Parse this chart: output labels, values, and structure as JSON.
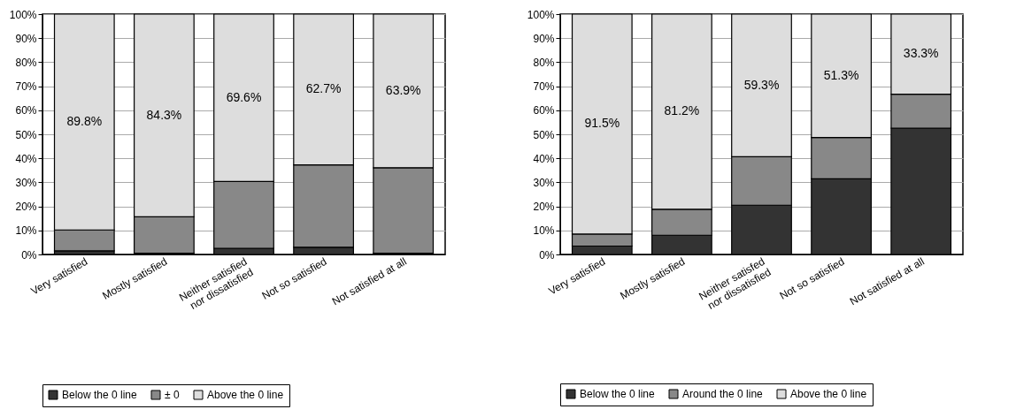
{
  "chart_data": [
    {
      "type": "bar",
      "stacked": true,
      "categories": [
        "Very satisfied",
        "Mostly satisfied",
        "Neither satisfied\nnor dissatisfied",
        "Not so satisfied",
        "Not satisfied at all"
      ],
      "series": [
        {
          "name": "Below the 0 line",
          "color": "#333333",
          "values": [
            1.5,
            0.5,
            2.5,
            3,
            0.5
          ]
        },
        {
          "name": "± 0",
          "color": "#888888",
          "values": [
            8.7,
            15.2,
            27.9,
            34.3,
            35.6
          ]
        },
        {
          "name": "Above the 0 line",
          "color": "#dddddd",
          "values": [
            89.8,
            84.3,
            69.6,
            62.7,
            63.9
          ],
          "value_labels": [
            "89.8%",
            "84.3%",
            "69.6%",
            "62.7%",
            "63.9%"
          ]
        }
      ],
      "ylim": [
        0,
        100
      ],
      "yticks": [
        {
          "value": 0,
          "label": "0%"
        },
        {
          "value": 10,
          "label": "10%"
        },
        {
          "value": 20,
          "label": "20%"
        },
        {
          "value": 30,
          "label": "30%"
        },
        {
          "value": 40,
          "label": "40%"
        },
        {
          "value": 50,
          "label": "50%"
        },
        {
          "value": 60,
          "label": "60%"
        },
        {
          "value": 70,
          "label": "70%"
        },
        {
          "value": 80,
          "label": "80%"
        },
        {
          "value": 90,
          "label": "90%"
        },
        {
          "value": 100,
          "label": "100%"
        }
      ],
      "grid": "y",
      "legend": "bottom"
    },
    {
      "type": "bar",
      "stacked": true,
      "categories": [
        "Very satisfied",
        "Mostly satisfied",
        "Neither satisfed\nnor dissatisfied",
        "Not so satisfied",
        "Not satisfied at all"
      ],
      "series": [
        {
          "name": "Below the 0 line",
          "color": "#333333",
          "values": [
            3.5,
            8,
            20.5,
            31.5,
            52.5
          ]
        },
        {
          "name": "Around the 0 line",
          "color": "#888888",
          "values": [
            5,
            10.8,
            20.2,
            17.2,
            14.2
          ]
        },
        {
          "name": "Above the 0 line",
          "color": "#dddddd",
          "values": [
            91.5,
            81.2,
            59.3,
            51.3,
            33.3
          ],
          "value_labels": [
            "91.5%",
            "81.2%",
            "59.3%",
            "51.3%",
            "33.3%"
          ]
        }
      ],
      "ylim": [
        0,
        100
      ],
      "yticks": [
        {
          "value": 0,
          "label": "0%"
        },
        {
          "value": 10,
          "label": "10%"
        },
        {
          "value": 20,
          "label": "20%"
        },
        {
          "value": 30,
          "label": "30%"
        },
        {
          "value": 40,
          "label": "40%"
        },
        {
          "value": 50,
          "label": "50%"
        },
        {
          "value": 60,
          "label": "60%"
        },
        {
          "value": 70,
          "label": "70%"
        },
        {
          "value": 80,
          "label": "80%"
        },
        {
          "value": 90,
          "label": "90%"
        },
        {
          "value": 100,
          "label": "100%"
        }
      ],
      "grid": "y",
      "legend": "bottom"
    }
  ]
}
